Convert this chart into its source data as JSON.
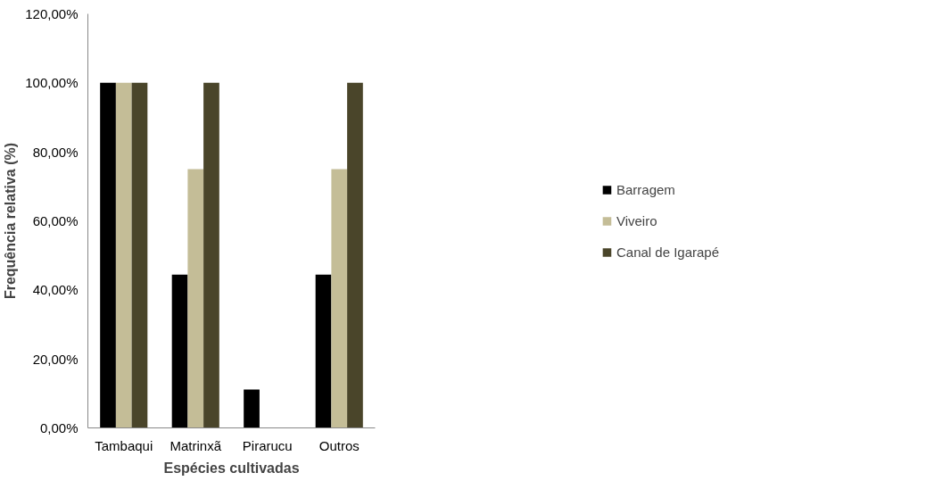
{
  "chart_data": {
    "type": "bar",
    "xlabel": "Espécies cultivadas",
    "ylabel": "Frequência relativa (%)",
    "categories": [
      "Tambaqui",
      "Matrinxã",
      "Pirarucu",
      "Outros"
    ],
    "series": [
      {
        "name": "Barragem",
        "color": "#000000",
        "values": [
          100,
          44.4,
          11.1,
          44.4
        ]
      },
      {
        "name": "Viveiro",
        "color": "#c4bd97",
        "values": [
          100,
          75,
          0,
          75
        ]
      },
      {
        "name": "Canal de Igarapé",
        "color": "#4a452a",
        "values": [
          100,
          100,
          0,
          100
        ]
      }
    ],
    "ylim": [
      0,
      120
    ],
    "yticks": [
      {
        "value": 0,
        "label": "0,00%"
      },
      {
        "value": 20,
        "label": "20,00%"
      },
      {
        "value": 40,
        "label": "40,00%"
      },
      {
        "value": 60,
        "label": "60,00%"
      },
      {
        "value": 80,
        "label": "80,00%"
      },
      {
        "value": 100,
        "label": "100,00%"
      },
      {
        "value": 120,
        "label": "120,00%"
      }
    ],
    "grid": false,
    "legend": "right"
  }
}
